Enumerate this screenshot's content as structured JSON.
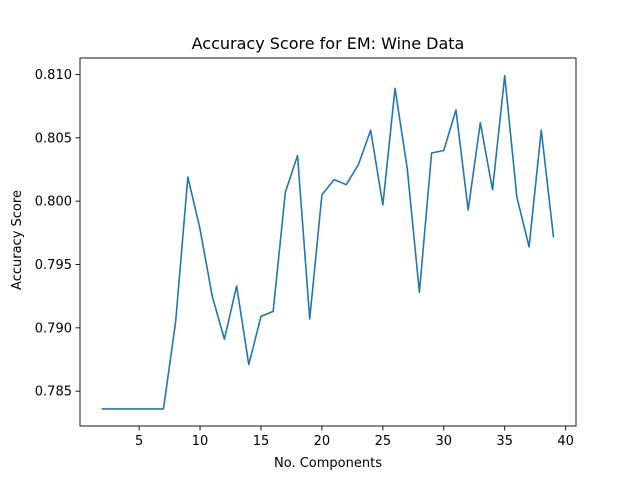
{
  "chart_data": {
    "type": "line",
    "title": "Accuracy Score for EM: Wine Data",
    "xlabel": "No. Components",
    "ylabel": "Accuracy Score",
    "xlim": [
      0.15,
      40.85
    ],
    "ylim": [
      0.78225,
      0.8113
    ],
    "x_ticks": [
      5,
      10,
      15,
      20,
      25,
      30,
      35,
      40
    ],
    "x_tick_labels": [
      "5",
      "10",
      "15",
      "20",
      "25",
      "30",
      "35",
      "40"
    ],
    "y_ticks": [
      0.785,
      0.79,
      0.795,
      0.8,
      0.805,
      0.81
    ],
    "y_tick_labels": [
      "0.785",
      "0.790",
      "0.795",
      "0.800",
      "0.805",
      "0.810"
    ],
    "grid": false,
    "series": [
      {
        "color": "#1f77b4",
        "x": [
          2,
          3,
          4,
          5,
          6,
          7,
          8,
          9,
          10,
          11,
          12,
          13,
          14,
          15,
          16,
          17,
          18,
          19,
          20,
          21,
          22,
          23,
          24,
          25,
          26,
          27,
          28,
          29,
          30,
          31,
          32,
          33,
          34,
          35,
          36,
          37,
          38,
          39
        ],
        "y": [
          0.7836,
          0.7836,
          0.7836,
          0.7836,
          0.7836,
          0.7836,
          0.7905,
          0.8019,
          0.7978,
          0.7925,
          0.7891,
          0.7933,
          0.7871,
          0.7909,
          0.7913,
          0.8007,
          0.8036,
          0.7907,
          0.8005,
          0.8017,
          0.8013,
          0.8029,
          0.8056,
          0.7997,
          0.8089,
          0.8026,
          0.7928,
          0.8038,
          0.804,
          0.8072,
          0.7993,
          0.8062,
          0.8009,
          0.8099,
          0.8003,
          0.7964,
          0.8056,
          0.7972
        ]
      }
    ]
  }
}
